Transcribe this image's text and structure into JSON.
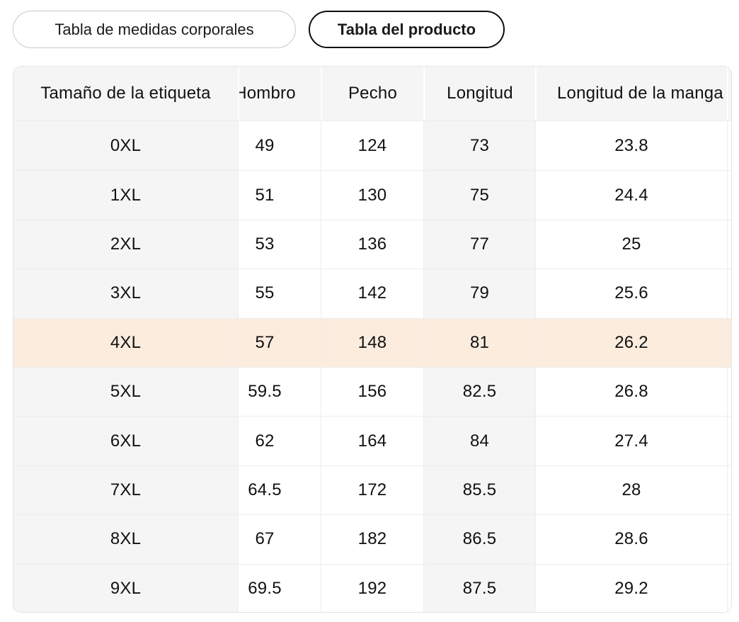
{
  "tabs": {
    "body_chart_label": "Tabla de medidas corporales",
    "product_chart_label": "Tabla del producto",
    "selected_tab": "Tabla del producto"
  },
  "size_table": {
    "columns": {
      "size": "Tamaño de la etiqueta",
      "shoulder": "Hombro",
      "chest": "Pecho",
      "length": "Longitud",
      "sleeve_length": "Longitud de la manga"
    },
    "rows": [
      {
        "size": "0XL",
        "shoulder": "49",
        "chest": "124",
        "length": "73",
        "sleeve_length": "23.8",
        "highlighted": false
      },
      {
        "size": "1XL",
        "shoulder": "51",
        "chest": "130",
        "length": "75",
        "sleeve_length": "24.4",
        "highlighted": false
      },
      {
        "size": "2XL",
        "shoulder": "53",
        "chest": "136",
        "length": "77",
        "sleeve_length": "25",
        "highlighted": false
      },
      {
        "size": "3XL",
        "shoulder": "55",
        "chest": "142",
        "length": "79",
        "sleeve_length": "25.6",
        "highlighted": false
      },
      {
        "size": "4XL",
        "shoulder": "57",
        "chest": "148",
        "length": "81",
        "sleeve_length": "26.2",
        "highlighted": true
      },
      {
        "size": "5XL",
        "shoulder": "59.5",
        "chest": "156",
        "length": "82.5",
        "sleeve_length": "26.8",
        "highlighted": false
      },
      {
        "size": "6XL",
        "shoulder": "62",
        "chest": "164",
        "length": "84",
        "sleeve_length": "27.4",
        "highlighted": false
      },
      {
        "size": "7XL",
        "shoulder": "64.5",
        "chest": "172",
        "length": "85.5",
        "sleeve_length": "28",
        "highlighted": false
      },
      {
        "size": "8XL",
        "shoulder": "67",
        "chest": "182",
        "length": "86.5",
        "sleeve_length": "28.6",
        "highlighted": false
      },
      {
        "size": "9XL",
        "shoulder": "69.5",
        "chest": "192",
        "length": "87.5",
        "sleeve_length": "29.2",
        "highlighted": false
      }
    ],
    "colors": {
      "highlight_row": "#fcecde",
      "header_bg": "#f5f5f6",
      "striped_column_bg": "#f5f5f6",
      "selected_tab_border": "#0c0c0c"
    }
  }
}
